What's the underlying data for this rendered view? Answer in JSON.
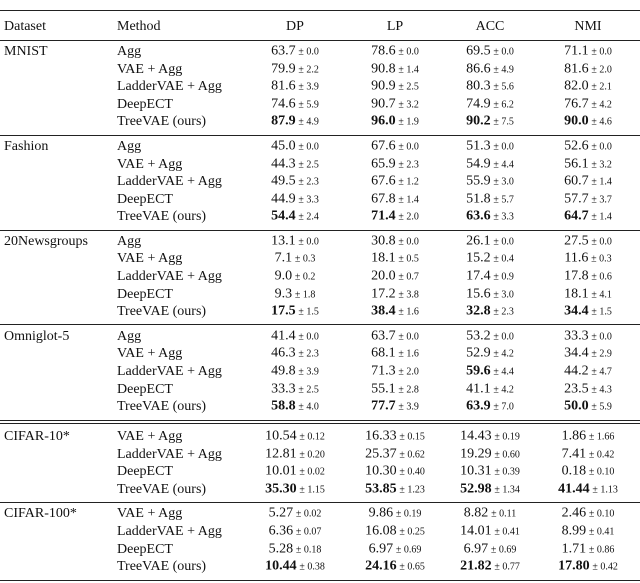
{
  "header": [
    "Dataset",
    "Method",
    "DP",
    "LP",
    "ACC",
    "NMI"
  ],
  "groups": [
    {
      "dataset": "MNIST",
      "rows": [
        {
          "method": "Agg",
          "cells": [
            {
              "m": "63.7",
              "s": "± 0.0"
            },
            {
              "m": "78.6",
              "s": "± 0.0"
            },
            {
              "m": "69.5",
              "s": "± 0.0"
            },
            {
              "m": "71.1",
              "s": "± 0.0"
            }
          ]
        },
        {
          "method": "VAE + Agg",
          "cells": [
            {
              "m": "79.9",
              "s": "± 2.2"
            },
            {
              "m": "90.8",
              "s": "± 1.4"
            },
            {
              "m": "86.6",
              "s": "± 4.9"
            },
            {
              "m": "81.6",
              "s": "± 2.0"
            }
          ]
        },
        {
          "method": "LadderVAE + Agg",
          "cells": [
            {
              "m": "81.6",
              "s": "± 3.9"
            },
            {
              "m": "90.9",
              "s": "± 2.5"
            },
            {
              "m": "80.3",
              "s": "± 5.6"
            },
            {
              "m": "82.0",
              "s": "± 2.1"
            }
          ]
        },
        {
          "method": "DeepECT",
          "cells": [
            {
              "m": "74.6",
              "s": "± 5.9"
            },
            {
              "m": "90.7",
              "s": "± 3.2"
            },
            {
              "m": "74.9",
              "s": "± 6.2"
            },
            {
              "m": "76.7",
              "s": "± 4.2"
            }
          ]
        },
        {
          "method": "TreeVAE (ours)",
          "cells": [
            {
              "m": "87.9",
              "s": "± 4.9",
              "b": true
            },
            {
              "m": "96.0",
              "s": "± 1.9",
              "b": true
            },
            {
              "m": "90.2",
              "s": "± 7.5",
              "b": true
            },
            {
              "m": "90.0",
              "s": "± 4.6",
              "b": true
            }
          ]
        }
      ]
    },
    {
      "dataset": "Fashion",
      "rows": [
        {
          "method": "Agg",
          "cells": [
            {
              "m": "45.0",
              "s": "± 0.0"
            },
            {
              "m": "67.6",
              "s": "± 0.0"
            },
            {
              "m": "51.3",
              "s": "± 0.0"
            },
            {
              "m": "52.6",
              "s": "± 0.0"
            }
          ]
        },
        {
          "method": "VAE + Agg",
          "cells": [
            {
              "m": "44.3",
              "s": "± 2.5"
            },
            {
              "m": "65.9",
              "s": "± 2.3"
            },
            {
              "m": "54.9",
              "s": "± 4.4"
            },
            {
              "m": "56.1",
              "s": "± 3.2"
            }
          ]
        },
        {
          "method": "LadderVAE + Agg",
          "cells": [
            {
              "m": "49.5",
              "s": "± 2.3"
            },
            {
              "m": "67.6",
              "s": "± 1.2"
            },
            {
              "m": "55.9",
              "s": "± 3.0"
            },
            {
              "m": "60.7",
              "s": "± 1.4"
            }
          ]
        },
        {
          "method": "DeepECT",
          "cells": [
            {
              "m": "44.9",
              "s": "± 3.3"
            },
            {
              "m": "67.8",
              "s": "± 1.4"
            },
            {
              "m": "51.8",
              "s": "± 5.7"
            },
            {
              "m": "57.7",
              "s": "± 3.7"
            }
          ]
        },
        {
          "method": "TreeVAE (ours)",
          "cells": [
            {
              "m": "54.4",
              "s": "± 2.4",
              "b": true
            },
            {
              "m": "71.4",
              "s": "± 2.0",
              "b": true
            },
            {
              "m": "63.6",
              "s": "± 3.3",
              "b": true
            },
            {
              "m": "64.7",
              "s": "± 1.4",
              "b": true
            }
          ]
        }
      ]
    },
    {
      "dataset": "20Newsgroups",
      "rows": [
        {
          "method": "Agg",
          "cells": [
            {
              "m": "13.1",
              "s": "± 0.0"
            },
            {
              "m": "30.8",
              "s": "± 0.0"
            },
            {
              "m": "26.1",
              "s": "± 0.0"
            },
            {
              "m": "27.5",
              "s": "± 0.0"
            }
          ]
        },
        {
          "method": "VAE + Agg",
          "cells": [
            {
              "m": "7.1",
              "s": "± 0.3"
            },
            {
              "m": "18.1",
              "s": "± 0.5"
            },
            {
              "m": "15.2",
              "s": "± 0.4"
            },
            {
              "m": "11.6",
              "s": "± 0.3"
            }
          ]
        },
        {
          "method": "LadderVAE + Agg",
          "cells": [
            {
              "m": "9.0",
              "s": "± 0.2"
            },
            {
              "m": "20.0",
              "s": "± 0.7"
            },
            {
              "m": "17.4",
              "s": "± 0.9"
            },
            {
              "m": "17.8",
              "s": "± 0.6"
            }
          ]
        },
        {
          "method": "DeepECT",
          "cells": [
            {
              "m": "9.3",
              "s": "± 1.8"
            },
            {
              "m": "17.2",
              "s": "± 3.8"
            },
            {
              "m": "15.6",
              "s": "± 3.0"
            },
            {
              "m": "18.1",
              "s": "± 4.1"
            }
          ]
        },
        {
          "method": "TreeVAE (ours)",
          "cells": [
            {
              "m": "17.5",
              "s": "± 1.5",
              "b": true
            },
            {
              "m": "38.4",
              "s": "± 1.6",
              "b": true
            },
            {
              "m": "32.8",
              "s": "± 2.3",
              "b": true
            },
            {
              "m": "34.4",
              "s": "± 1.5",
              "b": true
            }
          ]
        }
      ]
    },
    {
      "dataset": "Omniglot-5",
      "rows": [
        {
          "method": "Agg",
          "cells": [
            {
              "m": "41.4",
              "s": "± 0.0"
            },
            {
              "m": "63.7",
              "s": "± 0.0"
            },
            {
              "m": "53.2",
              "s": "± 0.0"
            },
            {
              "m": "33.3",
              "s": "± 0.0"
            }
          ]
        },
        {
          "method": "VAE + Agg",
          "cells": [
            {
              "m": "46.3",
              "s": "± 2.3"
            },
            {
              "m": "68.1",
              "s": "± 1.6"
            },
            {
              "m": "52.9",
              "s": "± 4.2"
            },
            {
              "m": "34.4",
              "s": "± 2.9"
            }
          ]
        },
        {
          "method": "LadderVAE + Agg",
          "cells": [
            {
              "m": "49.8",
              "s": "± 3.9"
            },
            {
              "m": "71.3",
              "s": "± 2.0"
            },
            {
              "m": "59.6",
              "s": "± 4.4",
              "b": true
            },
            {
              "m": "44.2",
              "s": "± 4.7"
            }
          ]
        },
        {
          "method": "DeepECT",
          "cells": [
            {
              "m": "33.3",
              "s": "± 2.5"
            },
            {
              "m": "55.1",
              "s": "± 2.8"
            },
            {
              "m": "41.1",
              "s": "± 4.2"
            },
            {
              "m": "23.5",
              "s": "± 4.3"
            }
          ]
        },
        {
          "method": "TreeVAE (ours)",
          "cells": [
            {
              "m": "58.8",
              "s": "± 4.0",
              "b": true
            },
            {
              "m": "77.7",
              "s": "± 3.9",
              "b": true
            },
            {
              "m": "63.9",
              "s": "± 7.0",
              "b": true
            },
            {
              "m": "50.0",
              "s": "± 5.9",
              "b": true
            }
          ]
        }
      ]
    },
    {
      "dataset": "CIFAR-10*",
      "rows": [
        {
          "method": "VAE + Agg",
          "cells": [
            {
              "m": "10.54",
              "s": "± 0.12"
            },
            {
              "m": "16.33",
              "s": "± 0.15"
            },
            {
              "m": "14.43",
              "s": "± 0.19"
            },
            {
              "m": "1.86",
              "s": "± 1.66"
            }
          ]
        },
        {
          "method": "LadderVAE + Agg",
          "cells": [
            {
              "m": "12.81",
              "s": "± 0.20"
            },
            {
              "m": "25.37",
              "s": "± 0.62"
            },
            {
              "m": "19.29",
              "s": "± 0.60"
            },
            {
              "m": "7.41",
              "s": "± 0.42"
            }
          ]
        },
        {
          "method": "DeepECT",
          "cells": [
            {
              "m": "10.01",
              "s": "± 0.02"
            },
            {
              "m": "10.30",
              "s": "± 0.40"
            },
            {
              "m": "10.31",
              "s": "± 0.39"
            },
            {
              "m": "0.18",
              "s": "± 0.10"
            }
          ]
        },
        {
          "method": "TreeVAE (ours)",
          "cells": [
            {
              "m": "35.30",
              "s": "± 1.15",
              "b": true
            },
            {
              "m": "53.85",
              "s": "± 1.23",
              "b": true
            },
            {
              "m": "52.98",
              "s": "± 1.34",
              "b": true
            },
            {
              "m": "41.44",
              "s": "± 1.13",
              "b": true
            }
          ]
        }
      ]
    },
    {
      "dataset": "CIFAR-100*",
      "rows": [
        {
          "method": "VAE + Agg",
          "cells": [
            {
              "m": "5.27",
              "s": "± 0.02"
            },
            {
              "m": "9.86",
              "s": "± 0.19"
            },
            {
              "m": "8.82",
              "s": "± 0.11"
            },
            {
              "m": "2.46",
              "s": "± 0.10"
            }
          ]
        },
        {
          "method": "LadderVAE + Agg",
          "cells": [
            {
              "m": "6.36",
              "s": "± 0.07"
            },
            {
              "m": "16.08",
              "s": "± 0.25"
            },
            {
              "m": "14.01",
              "s": "± 0.41"
            },
            {
              "m": "8.99",
              "s": "± 0.41"
            }
          ]
        },
        {
          "method": "DeepECT",
          "cells": [
            {
              "m": "5.28",
              "s": "± 0.18"
            },
            {
              "m": "6.97",
              "s": "± 0.69"
            },
            {
              "m": "6.97",
              "s": "± 0.69"
            },
            {
              "m": "1.71",
              "s": "± 0.86"
            }
          ]
        },
        {
          "method": "TreeVAE (ours)",
          "cells": [
            {
              "m": "10.44",
              "s": "± 0.38",
              "b": true
            },
            {
              "m": "24.16",
              "s": "± 0.65",
              "b": true
            },
            {
              "m": "21.82",
              "s": "± 0.77",
              "b": true
            },
            {
              "m": "17.80",
              "s": "± 0.42",
              "b": true
            }
          ]
        }
      ]
    }
  ]
}
